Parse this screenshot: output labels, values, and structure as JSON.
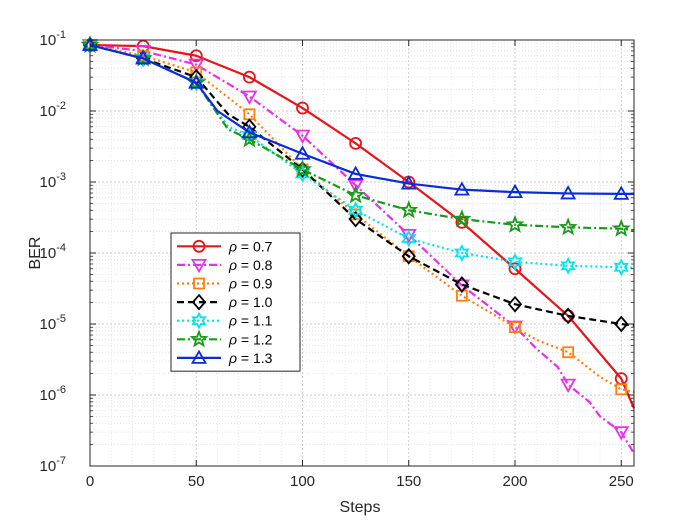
{
  "chart_data": {
    "type": "line",
    "title": "",
    "xlabel": "Steps",
    "ylabel": "BER",
    "xscale": "linear",
    "yscale": "log",
    "xlim": [
      0,
      256
    ],
    "ylim": [
      1e-07,
      0.1
    ],
    "x_ticks": [
      0,
      50,
      100,
      150,
      200,
      250
    ],
    "x_tick_labels": [
      "0",
      "50",
      "100",
      "150",
      "200",
      "250"
    ],
    "y_ticks": [
      1e-07,
      1e-06,
      1e-05,
      0.0001,
      0.001,
      0.01,
      0.1
    ],
    "y_tick_labels": [
      {
        "base": "10",
        "exp": "-7"
      },
      {
        "base": "10",
        "exp": "-6"
      },
      {
        "base": "10",
        "exp": "-5"
      },
      {
        "base": "10",
        "exp": "-4"
      },
      {
        "base": "10",
        "exp": "-3"
      },
      {
        "base": "10",
        "exp": "-2"
      },
      {
        "base": "10",
        "exp": "-1"
      }
    ],
    "grid": true,
    "minor_grid": true,
    "legend_position": "center-left",
    "series": [
      {
        "name": "ρ = 0.7",
        "legend_prefix": "ρ",
        "legend_value": " = 0.7",
        "color": "#e8141b",
        "dash": "solid",
        "marker": "circle",
        "x": [
          0,
          25,
          50,
          75,
          100,
          125,
          150,
          175,
          200,
          225,
          250,
          256
        ],
        "y": [
          0.085,
          0.082,
          0.06,
          0.03,
          0.011,
          0.0035,
          0.001,
          0.00027,
          6e-05,
          1.3e-05,
          1.7e-06,
          6.5e-07
        ],
        "marker_x": [
          0,
          25,
          50,
          75,
          100,
          125,
          150,
          175,
          200,
          225,
          250
        ],
        "marker_y": [
          0.085,
          0.082,
          0.06,
          0.03,
          0.011,
          0.0035,
          0.001,
          0.00027,
          6e-05,
          1.3e-05,
          1.7e-06
        ]
      },
      {
        "name": "ρ = 0.8",
        "legend_prefix": "ρ",
        "legend_value": " = 0.8",
        "color": "#e930e9",
        "dash": "dashdot",
        "marker": "triangle-down",
        "x": [
          0,
          25,
          50,
          75,
          100,
          125,
          150,
          175,
          200,
          210,
          220,
          225,
          235,
          240,
          250,
          256
        ],
        "y": [
          0.085,
          0.07,
          0.045,
          0.016,
          0.0045,
          0.0009,
          0.00018,
          3.5e-05,
          9.2e-06,
          4.5e-06,
          2.5e-06,
          1.4e-06,
          8e-07,
          5e-07,
          3e-07,
          1.5e-07
        ],
        "marker_x": [
          0,
          25,
          50,
          75,
          100,
          125,
          150,
          175,
          200,
          225,
          250
        ],
        "marker_y": [
          0.085,
          0.07,
          0.045,
          0.016,
          0.0045,
          0.0009,
          0.00018,
          3.5e-05,
          9.2e-06,
          1.4e-06,
          3e-07
        ]
      },
      {
        "name": "ρ = 0.9",
        "legend_prefix": "ρ",
        "legend_value": " = 0.9",
        "color": "#ff7f0e",
        "dash": "dotted",
        "marker": "square",
        "x": [
          0,
          25,
          50,
          75,
          100,
          125,
          150,
          175,
          200,
          210,
          225,
          240,
          250,
          256
        ],
        "y": [
          0.085,
          0.06,
          0.035,
          0.009,
          0.0015,
          0.00035,
          9e-05,
          2.5e-05,
          9e-06,
          6e-06,
          4e-06,
          1.8e-06,
          1.2e-06,
          1.1e-06
        ],
        "marker_x": [
          0,
          25,
          50,
          75,
          100,
          125,
          150,
          175,
          200,
          225,
          250
        ],
        "marker_y": [
          0.085,
          0.06,
          0.035,
          0.009,
          0.0015,
          0.00035,
          9e-05,
          2.5e-05,
          9e-06,
          4e-06,
          1.2e-06
        ]
      },
      {
        "name": "ρ = 1.0",
        "legend_prefix": "ρ",
        "legend_value": " = 1.0",
        "color": "#000000",
        "dash": "dashed",
        "marker": "diamond",
        "x": [
          0,
          25,
          50,
          65,
          75,
          100,
          125,
          150,
          175,
          200,
          225,
          250,
          256
        ],
        "y": [
          0.085,
          0.055,
          0.03,
          0.009,
          0.006,
          0.0015,
          0.0003,
          9e-05,
          3.6e-05,
          1.9e-05,
          1.3e-05,
          1e-05,
          9.5e-06
        ],
        "marker_x": [
          0,
          25,
          50,
          75,
          100,
          125,
          150,
          175,
          200,
          225,
          250
        ],
        "marker_y": [
          0.085,
          0.055,
          0.03,
          0.006,
          0.0015,
          0.0003,
          9e-05,
          3.6e-05,
          1.9e-05,
          1.3e-05,
          1e-05
        ]
      },
      {
        "name": "ρ = 1.1",
        "legend_prefix": "ρ",
        "legend_value": " = 1.1",
        "color": "#00e5ee",
        "dash": "dotted",
        "marker": "hexagram",
        "x": [
          0,
          25,
          50,
          65,
          75,
          100,
          125,
          150,
          175,
          200,
          225,
          250,
          256
        ],
        "y": [
          0.085,
          0.055,
          0.025,
          0.006,
          0.0045,
          0.0013,
          0.0004,
          0.00016,
          0.0001,
          7.5e-05,
          6.6e-05,
          6.3e-05,
          6.2e-05
        ],
        "marker_x": [
          0,
          25,
          50,
          75,
          100,
          125,
          150,
          175,
          200,
          225,
          250
        ],
        "marker_y": [
          0.085,
          0.055,
          0.025,
          0.0045,
          0.0013,
          0.0004,
          0.00016,
          0.0001,
          7.5e-05,
          6.6e-05,
          6.3e-05
        ]
      },
      {
        "name": "ρ = 1.2",
        "legend_prefix": "ρ",
        "legend_value": " = 1.2",
        "color": "#1a9a1a",
        "dash": "dashdot",
        "marker": "pentagram",
        "x": [
          0,
          25,
          50,
          65,
          75,
          100,
          125,
          150,
          175,
          200,
          225,
          250,
          256
        ],
        "y": [
          0.085,
          0.055,
          0.025,
          0.0055,
          0.004,
          0.0015,
          0.00065,
          0.0004,
          0.0003,
          0.00025,
          0.00023,
          0.00022,
          0.00021
        ],
        "marker_x": [
          0,
          25,
          50,
          75,
          100,
          125,
          150,
          175,
          200,
          225,
          250
        ],
        "marker_y": [
          0.085,
          0.055,
          0.025,
          0.004,
          0.0015,
          0.00065,
          0.0004,
          0.0003,
          0.00025,
          0.00023,
          0.00022
        ]
      },
      {
        "name": "ρ = 1.3",
        "legend_prefix": "ρ",
        "legend_value": " = 1.3",
        "color": "#0a2bd8",
        "dash": "solid",
        "marker": "triangle-up",
        "x": [
          0,
          25,
          50,
          60,
          75,
          100,
          125,
          150,
          175,
          200,
          225,
          250,
          256
        ],
        "y": [
          0.085,
          0.055,
          0.025,
          0.01,
          0.005,
          0.0025,
          0.0013,
          0.00095,
          0.00078,
          0.00072,
          0.00069,
          0.00068,
          0.00068
        ],
        "marker_x": [
          0,
          25,
          50,
          75,
          100,
          125,
          150,
          175,
          200,
          225,
          250
        ],
        "marker_y": [
          0.085,
          0.055,
          0.025,
          0.005,
          0.0025,
          0.0013,
          0.00095,
          0.00078,
          0.00072,
          0.00069,
          0.00068
        ]
      }
    ]
  }
}
